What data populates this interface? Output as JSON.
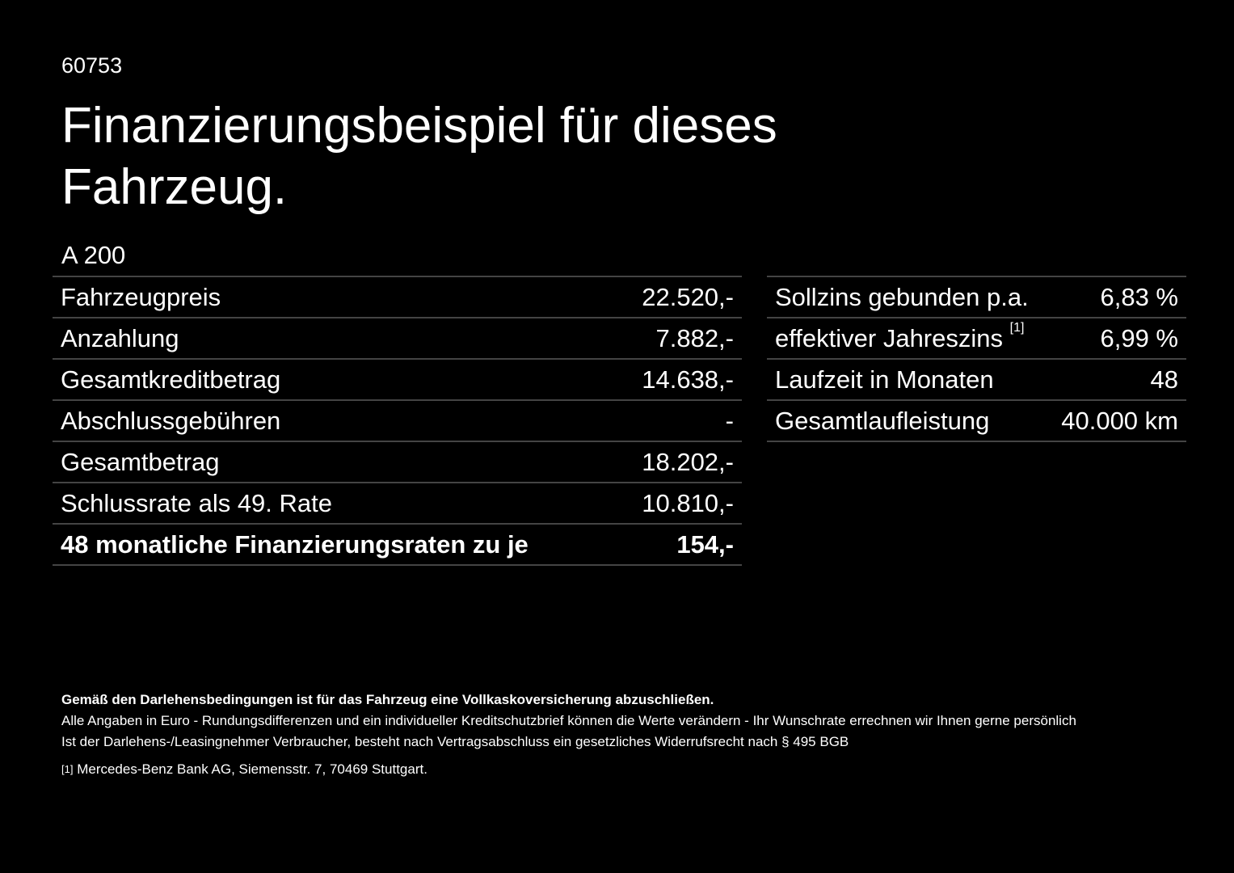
{
  "header": {
    "code": "60753",
    "title_line1": "Finanzierungsbeispiel für dieses",
    "title_line2": "Fahrzeug."
  },
  "model": "A 200",
  "left_table": {
    "rows": [
      [
        "Fahrzeugpreis",
        "22.520,-"
      ],
      [
        "Anzahlung",
        "7.882,-"
      ],
      [
        "Gesamtkreditbetrag",
        "14.638,-"
      ],
      [
        "Abschlussgebühren",
        "-"
      ],
      [
        "Gesamtbetrag",
        "18.202,-"
      ],
      [
        "Schlussrate als 49. Rate",
        "10.810,-"
      ],
      [
        "48 monatliche Finanzierungsraten zu je",
        "154,-"
      ]
    ]
  },
  "right_table": {
    "rows": [
      [
        "Sollzins gebunden p.a.",
        "6,83 %"
      ],
      [
        "effektiver Jahreszins",
        "6,99 %"
      ],
      [
        "Laufzeit in Monaten",
        "48"
      ],
      [
        "Gesamtlaufleistung",
        "40.000 km"
      ]
    ],
    "footnote_ref": "[1]"
  },
  "footer": {
    "bold": "Gemäß den Darlehensbedingungen ist für das Fahrzeug eine Vollkaskoversicherung abzuschließen.",
    "line1": "Alle Angaben in Euro - Rundungsdifferenzen und ein individueller Kreditschutzbrief können die Werte verändern - Ihr Wunschrate errechnen wir Ihnen gerne persönlich",
    "line2": "Ist der Darlehens-/Leasingnehmer Verbraucher, besteht nach Vertragsabschluss ein gesetzliches Widerrufsrecht nach § 495 BGB",
    "note_marker": "[1]",
    "note": "Mercedes-Benz Bank AG, Siemensstr. 7, 70469 Stuttgart."
  }
}
